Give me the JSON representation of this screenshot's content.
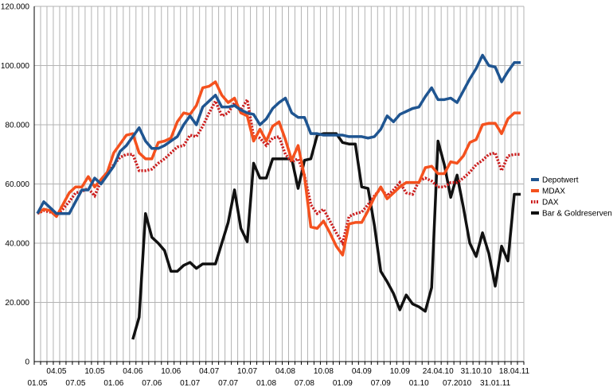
{
  "chart_data": {
    "type": "line",
    "title": "",
    "xlabel": "",
    "ylabel": "",
    "ylim": [
      0,
      120000
    ],
    "yticks": [
      0,
      20000,
      40000,
      60000,
      80000,
      100000,
      120000
    ],
    "ytick_labels": [
      "0",
      "20.000",
      "40.000",
      "60.000",
      "80.000",
      "100.000",
      "120.000"
    ],
    "grid": true,
    "legend_position": "right",
    "point_count": 77,
    "x_tick_labels": [
      {
        "label": "01.05",
        "index": 0,
        "row": 2
      },
      {
        "label": "04.05",
        "index": 3,
        "row": 1
      },
      {
        "label": "07.05",
        "index": 6,
        "row": 2
      },
      {
        "label": "10.05",
        "index": 9,
        "row": 1
      },
      {
        "label": "01.06",
        "index": 12,
        "row": 2
      },
      {
        "label": "04.06",
        "index": 15,
        "row": 1
      },
      {
        "label": "07.06",
        "index": 18,
        "row": 2
      },
      {
        "label": "10.06",
        "index": 21,
        "row": 1
      },
      {
        "label": "01.07",
        "index": 24,
        "row": 2
      },
      {
        "label": "04.07",
        "index": 27,
        "row": 1
      },
      {
        "label": "07.07",
        "index": 30,
        "row": 2
      },
      {
        "label": "10.07",
        "index": 33,
        "row": 1
      },
      {
        "label": "01.08",
        "index": 36,
        "row": 2
      },
      {
        "label": "04.08",
        "index": 39,
        "row": 1
      },
      {
        "label": "07.08",
        "index": 42,
        "row": 2
      },
      {
        "label": "10.08",
        "index": 45,
        "row": 1
      },
      {
        "label": "01.09",
        "index": 48,
        "row": 2
      },
      {
        "label": "04.09",
        "index": 51,
        "row": 1
      },
      {
        "label": "07.09",
        "index": 54,
        "row": 2
      },
      {
        "label": "10.09",
        "index": 57,
        "row": 1
      },
      {
        "label": "01.10",
        "index": 60,
        "row": 2
      },
      {
        "label": "24.04.10",
        "index": 63,
        "row": 1
      },
      {
        "label": "07.2010",
        "index": 66,
        "row": 2
      },
      {
        "label": "31.10.10",
        "index": 69,
        "row": 1
      },
      {
        "label": "31.01.11",
        "index": 72,
        "row": 2
      },
      {
        "label": "18.04.11",
        "index": 75,
        "row": 1
      }
    ],
    "series": [
      {
        "name": "Depotwert",
        "color": "#1f5591",
        "dash": "solid",
        "values": [
          50000,
          54000,
          52000,
          50000,
          50000,
          50000,
          54000,
          58000,
          58000,
          62000,
          60000,
          63000,
          66000,
          71000,
          73000,
          76000,
          79000,
          74500,
          72000,
          72000,
          73000,
          74500,
          76000,
          80000,
          83000,
          80000,
          86000,
          88000,
          90000,
          86000,
          86000,
          86500,
          85000,
          84000,
          83500,
          80000,
          82000,
          85500,
          87500,
          89000,
          84000,
          82500,
          82500,
          77000,
          77000,
          76500,
          76500,
          76500,
          76500,
          76000,
          76000,
          76000,
          75500,
          76000,
          78500,
          83000,
          81000,
          83500,
          84500,
          85500,
          86000,
          89500,
          92500,
          88500,
          88500,
          89000,
          87500,
          91500,
          95500,
          99000,
          103500,
          100000,
          99500,
          94500,
          98000,
          101000,
          101000
        ]
      },
      {
        "name": "MDAX",
        "color": "#f4511e",
        "dash": "solid",
        "values": [
          50000,
          51500,
          51000,
          49000,
          53000,
          57000,
          59000,
          59000,
          62500,
          59000,
          61500,
          64000,
          70500,
          73500,
          76500,
          77000,
          70500,
          68500,
          68500,
          74000,
          74500,
          75500,
          81000,
          84000,
          83500,
          86500,
          92500,
          93000,
          94500,
          90000,
          87500,
          89000,
          84000,
          83000,
          74500,
          78500,
          74500,
          79500,
          81000,
          75000,
          68000,
          73000,
          62500,
          45500,
          45000,
          47500,
          43500,
          39000,
          36000,
          46500,
          47000,
          47000,
          51000,
          55500,
          59000,
          55000,
          57000,
          59000,
          60500,
          60500,
          60500,
          65500,
          66000,
          63500,
          63500,
          67500,
          67000,
          69500,
          74000,
          75000,
          80000,
          80500,
          80500,
          77000,
          82000,
          84000,
          84000
        ]
      },
      {
        "name": "DAX",
        "color": "#cc1f1f",
        "dash": "dotted",
        "values": [
          50000,
          51000,
          50500,
          49500,
          51500,
          54000,
          57000,
          57500,
          58500,
          56000,
          61000,
          64000,
          66500,
          69000,
          70000,
          70000,
          64500,
          64500,
          65000,
          67000,
          68500,
          70500,
          72500,
          73000,
          76500,
          76000,
          79500,
          84000,
          88000,
          83000,
          84000,
          87500,
          85000,
          88500,
          76000,
          75500,
          73000,
          75500,
          76000,
          70000,
          67500,
          68500,
          63000,
          53000,
          50000,
          51500,
          47500,
          43500,
          40000,
          49000,
          50000,
          50500,
          53000,
          56000,
          58500,
          56000,
          58000,
          60500,
          57000,
          56500,
          61000,
          62000,
          61000,
          59000,
          59000,
          60500,
          60500,
          62000,
          64000,
          66500,
          68000,
          70000,
          70500,
          64500,
          69500,
          70000,
          70000
        ]
      },
      {
        "name": "Bar & Goldreserven",
        "color": "#111111",
        "dash": "solid",
        "values": [
          null,
          null,
          null,
          null,
          null,
          null,
          null,
          null,
          null,
          null,
          null,
          null,
          null,
          null,
          null,
          7500,
          15000,
          50000,
          42000,
          40000,
          37500,
          30500,
          30500,
          32500,
          33500,
          31500,
          33000,
          33000,
          33000,
          40000,
          47000,
          58000,
          45000,
          40500,
          67000,
          62000,
          62000,
          68500,
          68500,
          68500,
          68500,
          58500,
          68000,
          68500,
          76500,
          77000,
          77000,
          77000,
          74000,
          73500,
          73500,
          59000,
          58500,
          46000,
          30500,
          27000,
          23000,
          17500,
          22500,
          19500,
          18500,
          17000,
          25000,
          74500,
          66500,
          55500,
          63000,
          52000,
          40000,
          35500,
          43500,
          36500,
          25500,
          39000,
          34000,
          56500,
          56500
        ]
      }
    ]
  }
}
